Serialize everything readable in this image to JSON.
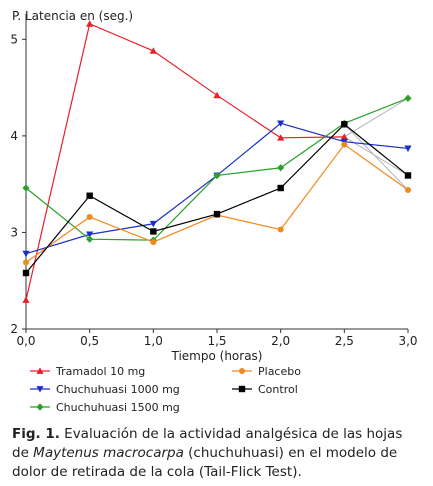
{
  "chart_data": {
    "type": "line",
    "ylabel": "P. Latencia en (seg.)",
    "xlabel": "Tiempo (horas)",
    "xlim": [
      0,
      3
    ],
    "ylim": [
      2,
      5.2
    ],
    "x_ticks": [
      "0,0",
      "0,5",
      "1,0",
      "1,5",
      "2,0",
      "2,5",
      "3,0"
    ],
    "y_ticks": [
      "2",
      "3",
      "4",
      "5"
    ],
    "legend_position": "bottom",
    "series": [
      {
        "name": "Tramadol 10 mg",
        "color": "#e8202a",
        "marker": "triangle-up",
        "points": [
          [
            0,
            2.3
          ],
          [
            0.5,
            5.16
          ],
          [
            1.0,
            4.88
          ],
          [
            1.5,
            4.42
          ],
          [
            2.0,
            3.98
          ],
          [
            2.5,
            3.99
          ]
        ]
      },
      {
        "name": "Chuchuhuasi 1000 mg",
        "color": "#1c2fc8",
        "marker": "triangle-down",
        "points": [
          [
            0,
            2.78
          ],
          [
            0.5,
            2.98
          ],
          [
            1.0,
            3.09
          ],
          [
            1.5,
            3.59
          ],
          [
            2.0,
            4.13
          ],
          [
            2.5,
            3.94
          ],
          [
            3.0,
            3.87
          ]
        ]
      },
      {
        "name": "Chuchuhuasi  1500 mg",
        "color": "#2aa02a",
        "marker": "diamond",
        "points": [
          [
            0,
            3.46
          ],
          [
            0.5,
            2.93
          ],
          [
            1.0,
            2.92
          ],
          [
            1.5,
            3.59
          ],
          [
            2.0,
            3.67
          ],
          [
            2.5,
            4.13
          ],
          [
            3.0,
            4.39
          ]
        ]
      },
      {
        "name": "Placebo",
        "color": "#ef8a1d",
        "marker": "circle",
        "points": [
          [
            0,
            2.69
          ],
          [
            0.5,
            3.16
          ],
          [
            1.0,
            2.9
          ],
          [
            1.5,
            3.18
          ],
          [
            2.0,
            3.03
          ],
          [
            2.5,
            3.91
          ],
          [
            3.0,
            3.44
          ]
        ]
      },
      {
        "name": "Control",
        "color": "#000000",
        "marker": "square",
        "points": [
          [
            0,
            2.58
          ],
          [
            0.5,
            3.38
          ],
          [
            1.0,
            3.01
          ],
          [
            1.5,
            3.19
          ],
          [
            2.0,
            3.46
          ],
          [
            2.5,
            4.12
          ],
          [
            3.0,
            3.59
          ]
        ]
      }
    ],
    "gray_segments": [
      [
        [
          2.5,
          3.99
        ],
        [
          3.0,
          4.39
        ]
      ],
      [
        [
          2.5,
          3.99
        ],
        [
          3.0,
          3.59
        ]
      ],
      [
        [
          2.5,
          3.94
        ],
        [
          3.0,
          3.87
        ]
      ],
      [
        [
          2.5,
          4.12
        ],
        [
          3.0,
          3.44
        ]
      ]
    ]
  },
  "caption": {
    "label": "Fig. 1.",
    "text_before": " Evaluación de la actividad analgésica de las hojas de ",
    "species": "Maytenus macrocarpa",
    "text_after": " (chuchuhuasi) en el modelo de dolor de retirada de la cola (Tail-Flick Test)."
  }
}
